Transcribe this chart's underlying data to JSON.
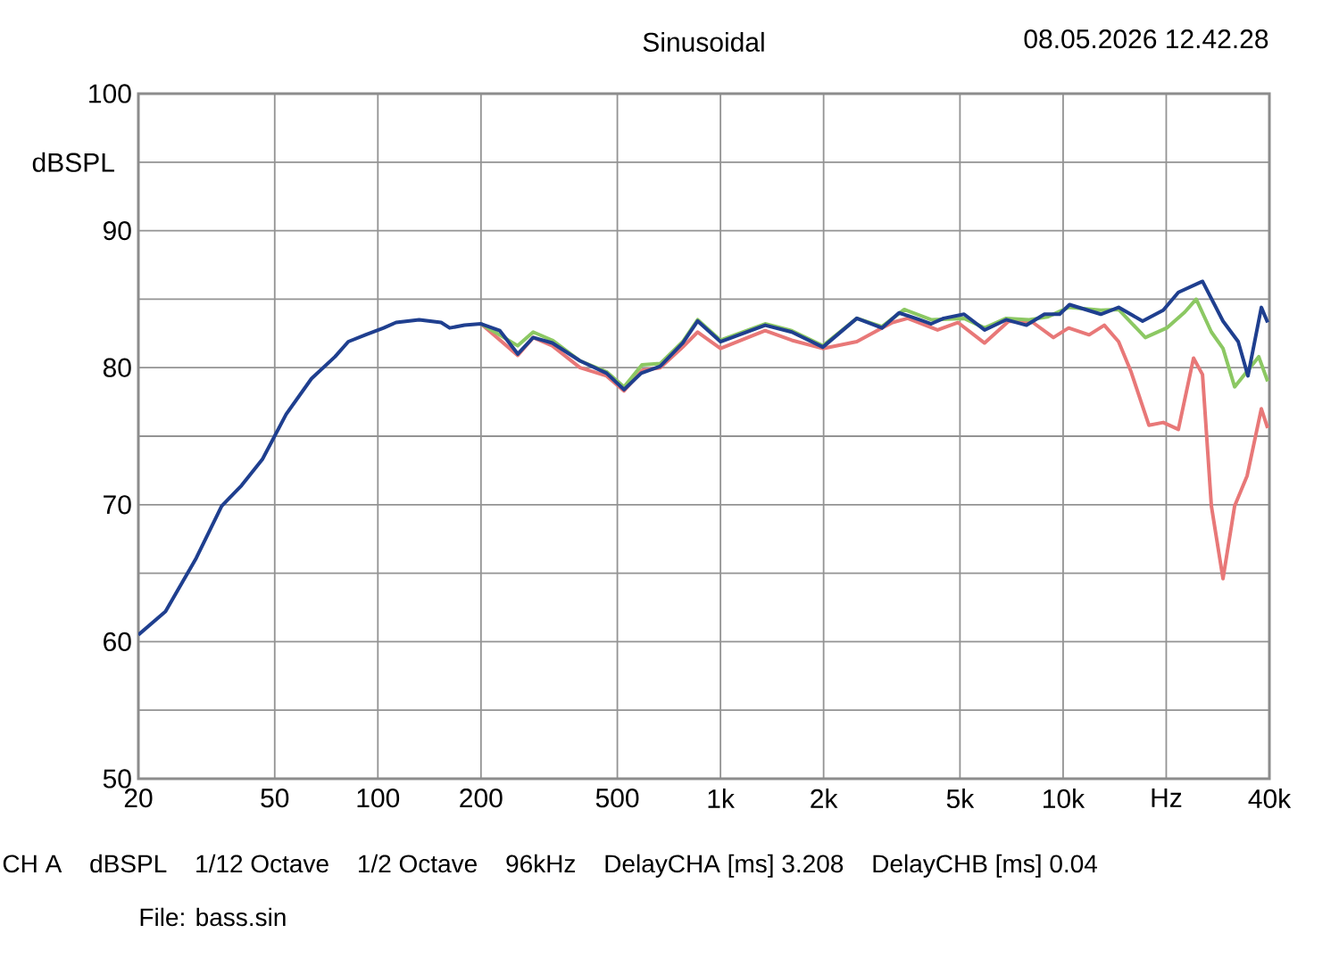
{
  "chart_data": {
    "type": "line",
    "title": "Sinusoidal",
    "subtitle": "08.05.2026 12.42.28",
    "ylabel": "dBSPL",
    "log": "x",
    "grid": true,
    "xlim": [
      20,
      40000
    ],
    "ylim": [
      50,
      100
    ],
    "xticks": [
      20,
      50,
      100,
      200,
      500,
      {
        "value": 1000,
        "label": "1k"
      },
      {
        "value": 2000,
        "label": "2k"
      },
      {
        "value": 5000,
        "label": "5k"
      },
      {
        "value": 10000,
        "label": "10k"
      },
      {
        "value": 20000,
        "label": "Hz"
      },
      {
        "value": 40000,
        "label": "40k"
      }
    ],
    "yticks": [
      50,
      {
        "value": 55,
        "label": null
      },
      60,
      {
        "value": 65,
        "label": null
      },
      70,
      {
        "value": 75,
        "label": null
      },
      80,
      {
        "value": 85,
        "label": null
      },
      90,
      {
        "value": 95,
        "label": null
      },
      100
    ],
    "series": [
      {
        "color": "#e87878",
        "x": [
          200,
          256,
          284,
          323,
          389,
          465,
          523,
          590,
          667,
          776,
          858,
          1000,
          1350,
          1615,
          1990,
          2500,
          2960,
          3180,
          3520,
          4300,
          4930,
          5900,
          6940,
          8160,
          9370,
          10380,
          11910,
          13190,
          14520,
          15790,
          17800,
          19600,
          21700,
          24030,
          25520,
          27090,
          29290,
          31670,
          34440,
          37900,
          39550
        ],
        "values": [
          83.2,
          80.9,
          82.2,
          81.6,
          80.0,
          79.4,
          78.3,
          79.8,
          80.0,
          81.5,
          82.6,
          81.4,
          82.7,
          82.0,
          81.4,
          81.9,
          82.9,
          83.3,
          83.6,
          82.75,
          83.3,
          81.8,
          83.4,
          83.3,
          82.2,
          82.9,
          82.4,
          83.1,
          81.9,
          79.7,
          75.8,
          76.0,
          75.5,
          80.7,
          79.5,
          69.9,
          64.6,
          69.9,
          72.1,
          77.0,
          75.6
        ]
      },
      {
        "color": "#8cc863",
        "x": [
          200,
          256,
          284,
          323,
          389,
          465,
          523,
          590,
          667,
          776,
          858,
          1000,
          1350,
          1615,
          1990,
          2500,
          2960,
          3440,
          4120,
          5140,
          5900,
          6820,
          7960,
          8990,
          10380,
          12880,
          14520,
          17380,
          20070,
          22640,
          24460,
          27090,
          29290,
          31670,
          37240,
          39550
        ],
        "values": [
          83.2,
          81.6,
          82.6,
          82.0,
          80.5,
          79.7,
          78.6,
          80.2,
          80.3,
          81.9,
          83.5,
          82.0,
          83.2,
          82.7,
          81.6,
          83.6,
          83.0,
          84.25,
          83.5,
          83.6,
          82.9,
          83.6,
          83.5,
          83.7,
          84.4,
          84.2,
          84.25,
          82.2,
          82.9,
          84.05,
          85.0,
          82.6,
          81.4,
          78.6,
          80.8,
          79.0
        ]
      },
      {
        "color": "#1f3f8f",
        "x": [
          20,
          24,
          29.5,
          35,
          40,
          46,
          54,
          64,
          75,
          82,
          92,
          104,
          113,
          132,
          153,
          162,
          179,
          200,
          227,
          256,
          284,
          323,
          389,
          465,
          523,
          587,
          667,
          776,
          858,
          1000,
          1350,
          1615,
          1990,
          2500,
          2960,
          3320,
          3810,
          4120,
          4480,
          5140,
          5900,
          6820,
          7820,
          8820,
          9770,
          10440,
          12880,
          14520,
          17060,
          19600,
          21700,
          25520,
          29290,
          32440,
          34640,
          37900,
          39550
        ],
        "values": [
          60.5,
          62.2,
          66.1,
          69.9,
          71.4,
          73.3,
          76.6,
          79.2,
          80.8,
          81.9,
          82.4,
          82.9,
          83.3,
          83.5,
          83.3,
          82.9,
          83.1,
          83.2,
          82.7,
          81.0,
          82.2,
          81.8,
          80.5,
          79.6,
          78.4,
          79.6,
          80.1,
          81.8,
          83.4,
          81.9,
          83.1,
          82.6,
          81.5,
          83.6,
          82.9,
          84.0,
          83.5,
          83.2,
          83.6,
          83.9,
          82.75,
          83.5,
          83.1,
          83.9,
          83.9,
          84.6,
          83.9,
          84.4,
          83.4,
          84.2,
          85.5,
          86.3,
          83.4,
          81.9,
          79.4,
          84.4,
          83.3
        ]
      }
    ],
    "annotations": [
      "CH A",
      "dBSPL",
      "1/12 Octave",
      "1/2 Octave",
      "96kHz",
      "DelayCHA [ms] 3.208",
      "DelayCHB [ms] 0.04",
      "File: bass.sin"
    ]
  }
}
